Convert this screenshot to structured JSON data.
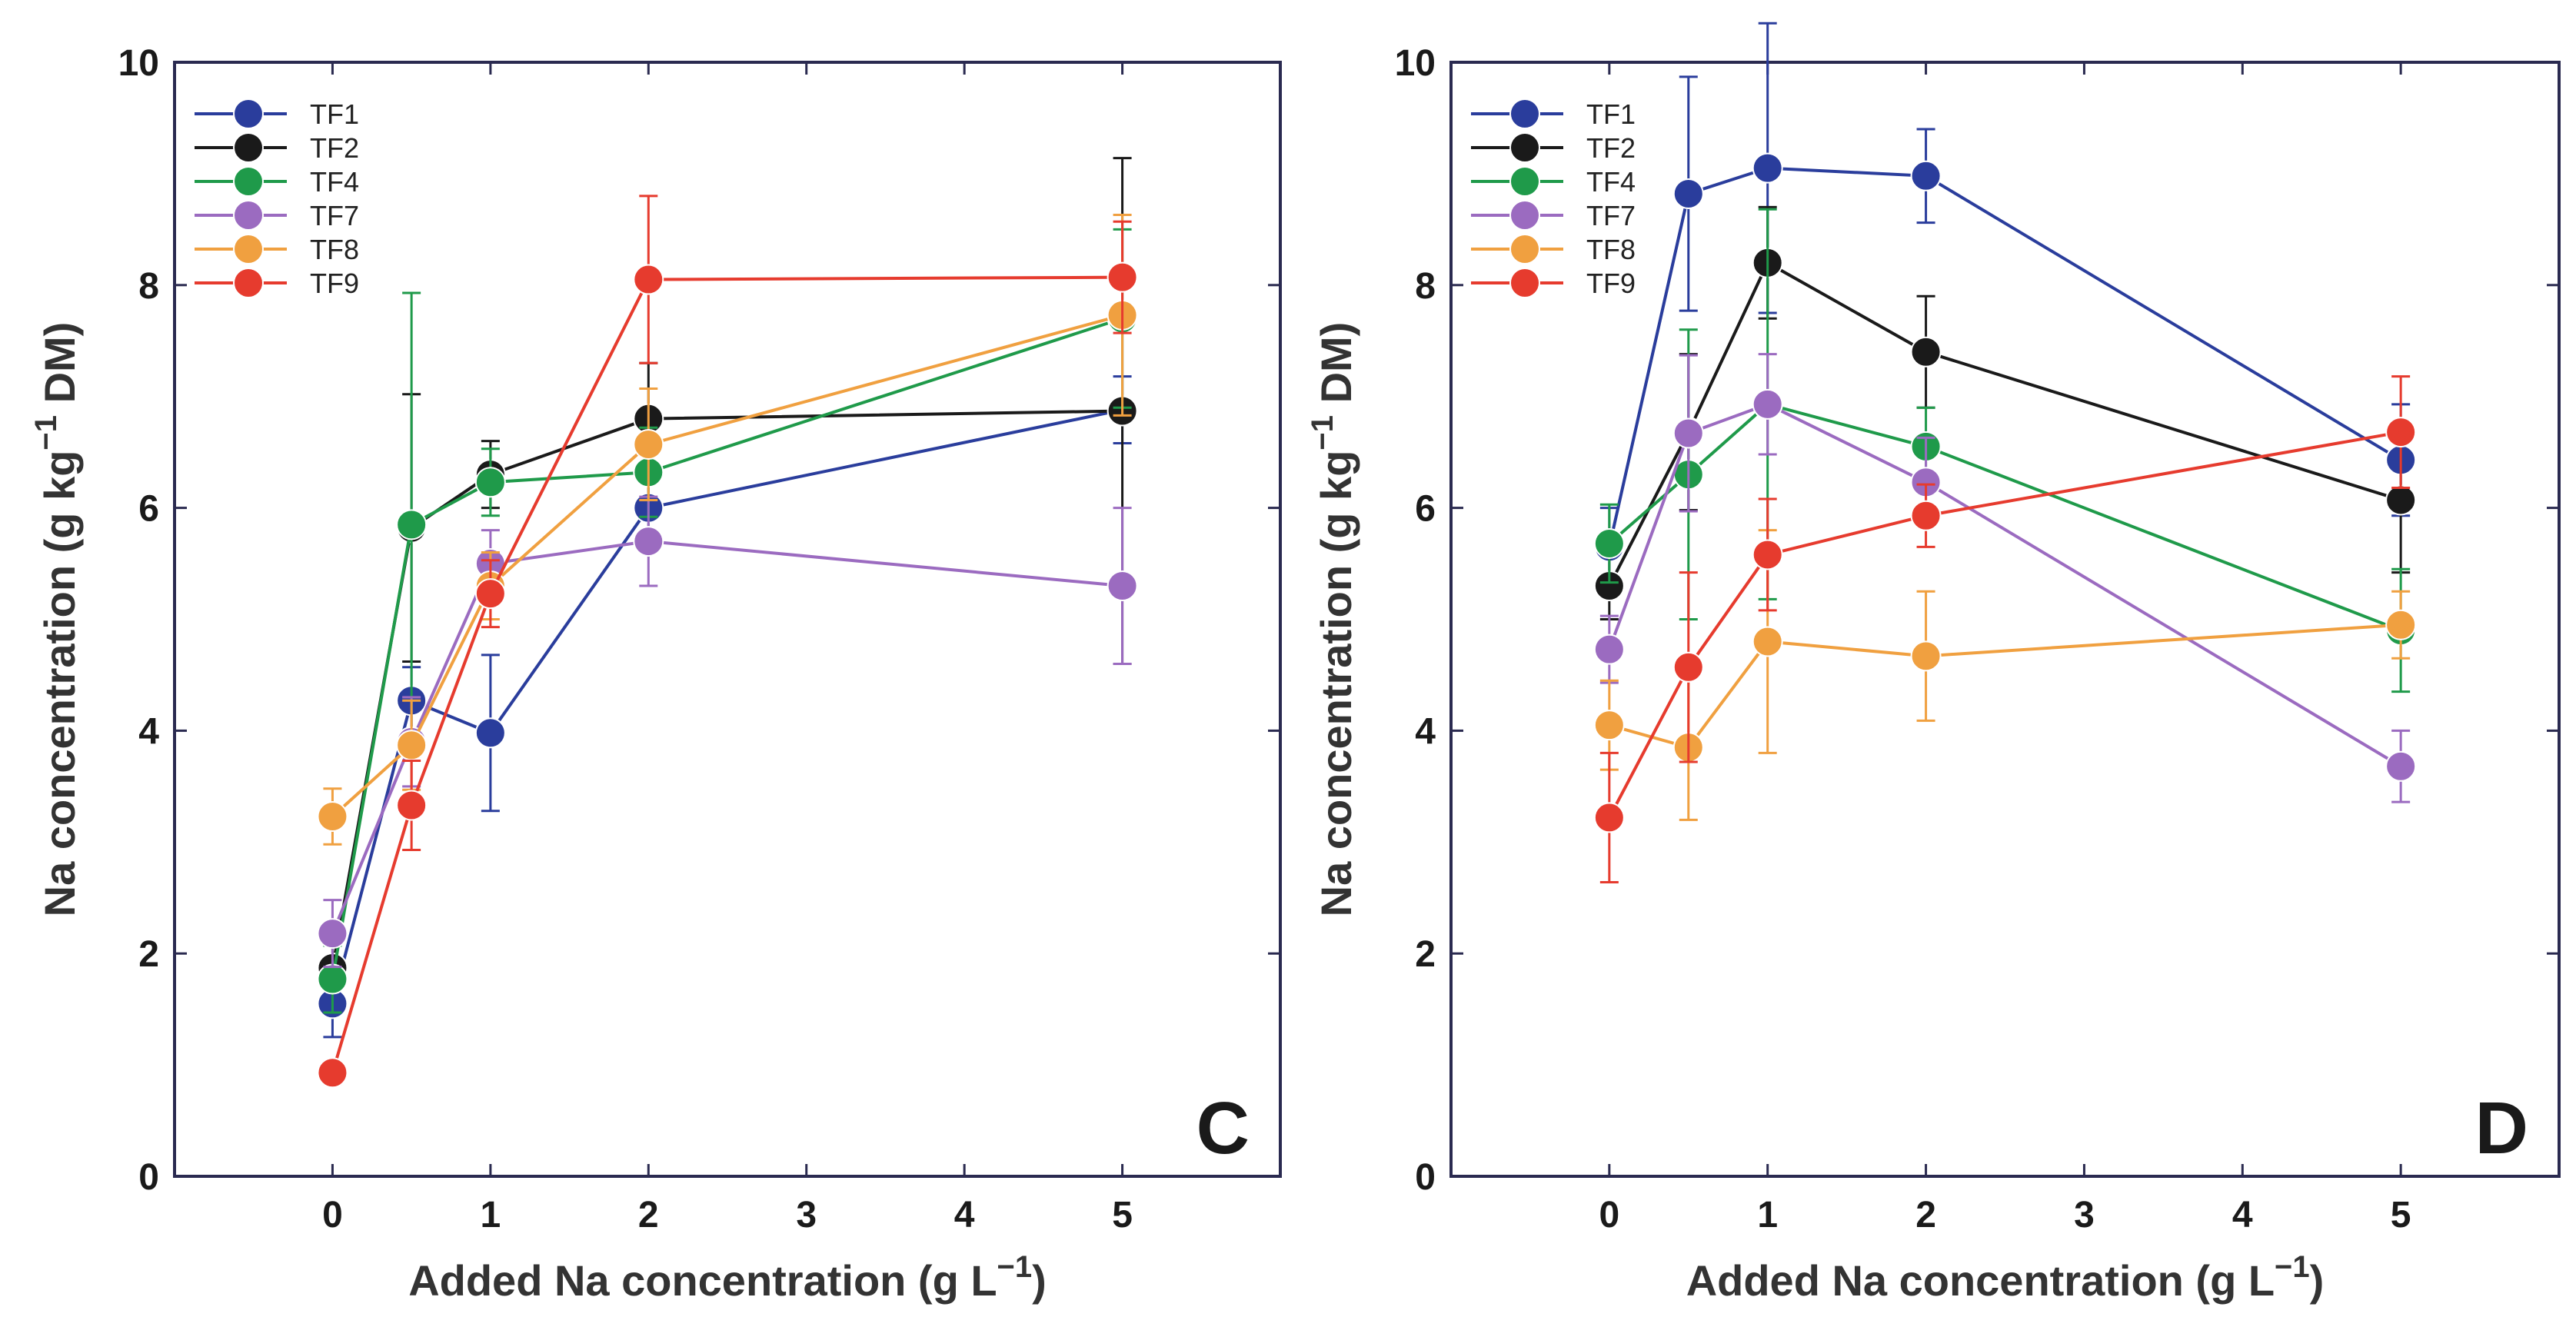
{
  "chart_data": [
    {
      "type": "line",
      "panel_label": "C",
      "xlabel": "Added Na concentration (g L",
      "xlabel_sup": "−1",
      "xlabel_end": ")",
      "ylabel": "Na concentration (g kg",
      "ylabel_sup": "−1",
      "ylabel_end": " DM)",
      "xlim": [
        -1,
        6
      ],
      "ylim": [
        0,
        10
      ],
      "xticks": [
        0,
        1,
        2,
        3,
        4,
        5
      ],
      "yticks": [
        0,
        2,
        4,
        6,
        8,
        10
      ],
      "legend": "top-left",
      "x": [
        0,
        0.5,
        1,
        2,
        5
      ],
      "series": [
        {
          "name": "TF1",
          "color": "#2a3d9c",
          "values": [
            1.55,
            4.27,
            3.98,
            6.0,
            6.88
          ],
          "err": [
            0.3,
            0.3,
            0.7,
            0.3,
            0.3
          ]
        },
        {
          "name": "TF2",
          "color": "#1a1a1a",
          "values": [
            1.87,
            5.82,
            6.3,
            6.8,
            6.87
          ],
          "err": [
            0.2,
            1.2,
            0.3,
            0.5,
            2.27
          ]
        },
        {
          "name": "TF4",
          "color": "#1f9a4a",
          "values": [
            1.77,
            5.85,
            6.23,
            6.32,
            7.7
          ],
          "err": [
            0.3,
            2.08,
            0.3,
            0.4,
            0.8
          ]
        },
        {
          "name": "TF7",
          "color": "#9b6bc0",
          "values": [
            2.18,
            3.9,
            5.5,
            5.7,
            5.3
          ],
          "err": [
            0.3,
            0.4,
            0.3,
            0.4,
            0.7
          ]
        },
        {
          "name": "TF8",
          "color": "#f0a040",
          "values": [
            3.23,
            3.87,
            5.3,
            6.57,
            7.73
          ],
          "err": [
            0.25,
            0.4,
            0.3,
            0.5,
            0.9
          ]
        },
        {
          "name": "TF9",
          "color": "#e63b2e",
          "values": [
            0.93,
            3.33,
            5.23,
            8.05,
            8.07
          ],
          "err": [
            0.1,
            0.4,
            0.3,
            0.75,
            0.5
          ]
        }
      ]
    },
    {
      "type": "line",
      "panel_label": "D",
      "xlabel": "Added Na concentration (g L",
      "xlabel_sup": "−1",
      "xlabel_end": ")",
      "ylabel": "Na concentration (g kg",
      "ylabel_sup": "−1",
      "ylabel_end": " DM)",
      "xlim": [
        -1,
        6
      ],
      "ylim": [
        0,
        10
      ],
      "xticks": [
        0,
        1,
        2,
        3,
        4,
        5
      ],
      "yticks": [
        0,
        2,
        4,
        6,
        8,
        10
      ],
      "legend": "top-left",
      "x": [
        0,
        0.5,
        1,
        2,
        5
      ],
      "series": [
        {
          "name": "TF1",
          "color": "#2a3d9c",
          "values": [
            5.65,
            8.82,
            9.05,
            8.98,
            6.43
          ],
          "err": [
            0.35,
            1.05,
            1.3,
            0.42,
            0.5
          ]
        },
        {
          "name": "TF2",
          "color": "#1a1a1a",
          "values": [
            5.3,
            6.68,
            8.2,
            7.4,
            6.07
          ],
          "err": [
            0.3,
            0.7,
            0.5,
            0.5,
            0.65
          ]
        },
        {
          "name": "TF4",
          "color": "#1f9a4a",
          "values": [
            5.68,
            6.3,
            6.93,
            6.55,
            4.9
          ],
          "err": [
            0.35,
            1.3,
            1.75,
            0.35,
            0.55
          ]
        },
        {
          "name": "TF7",
          "color": "#9b6bc0",
          "values": [
            4.73,
            6.67,
            6.93,
            6.23,
            3.68
          ],
          "err": [
            0.3,
            0.7,
            0.45,
            0.4,
            0.32
          ]
        },
        {
          "name": "TF8",
          "color": "#f0a040",
          "values": [
            4.05,
            3.85,
            4.8,
            4.67,
            4.95
          ],
          "err": [
            0.4,
            0.65,
            1.0,
            0.58,
            0.3
          ]
        },
        {
          "name": "TF9",
          "color": "#e63b2e",
          "values": [
            3.22,
            4.57,
            5.58,
            5.93,
            6.68
          ],
          "err": [
            0.58,
            0.85,
            0.5,
            0.28,
            0.5
          ]
        }
      ]
    }
  ]
}
